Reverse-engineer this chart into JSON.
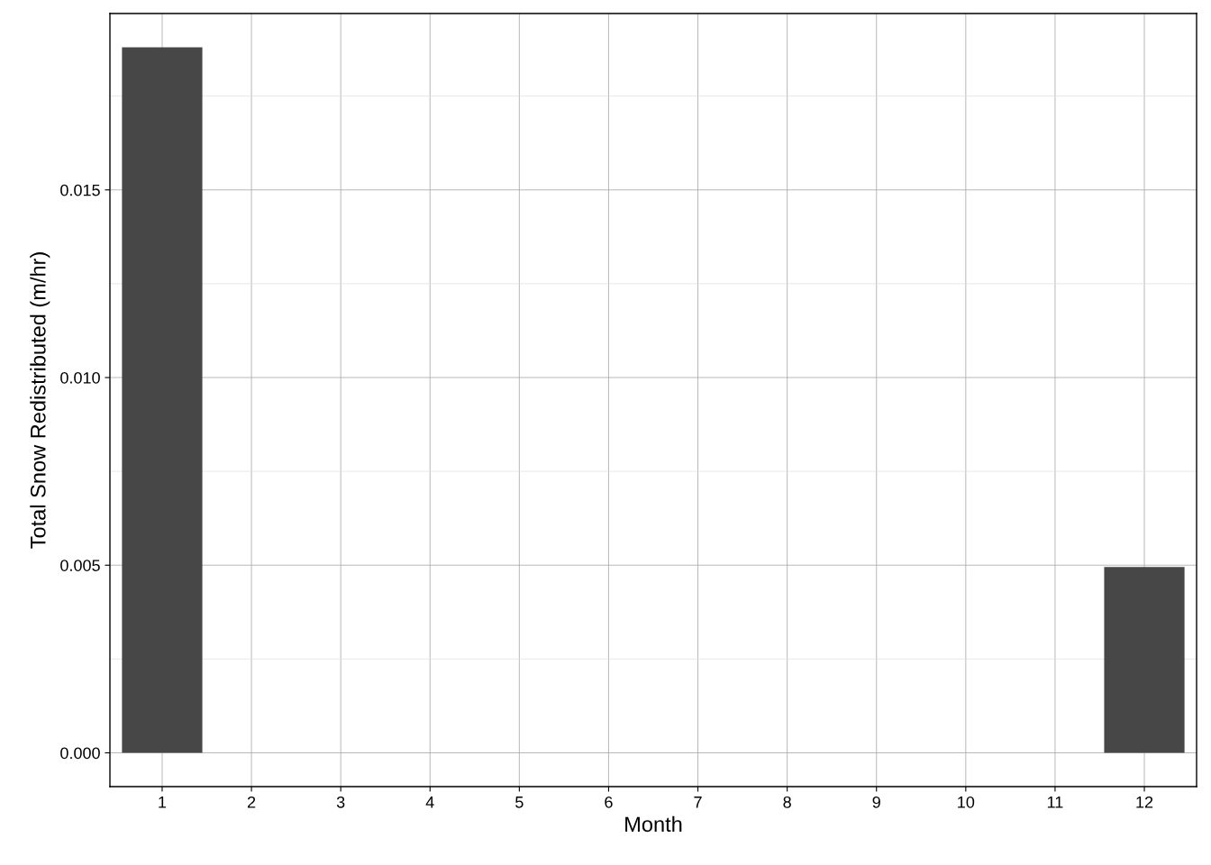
{
  "chart_data": {
    "type": "bar",
    "xlabel": "Month",
    "ylabel": "Total Snow Redistributed (m/hr)",
    "categories": [
      "1",
      "2",
      "3",
      "4",
      "5",
      "6",
      "7",
      "8",
      "9",
      "10",
      "11",
      "12"
    ],
    "values": [
      0.0188,
      0,
      0,
      0,
      0,
      0,
      0,
      0,
      0,
      0,
      0,
      0.00495
    ],
    "color": "#474747",
    "ylim": [
      -0.0009,
      0.0197
    ],
    "yticks": [
      {
        "value": 0,
        "label": "0.000"
      },
      {
        "value": 0.005,
        "label": "0.005"
      },
      {
        "value": 0.01,
        "label": "0.010"
      },
      {
        "value": 0.015,
        "label": "0.015"
      }
    ],
    "grid": true
  }
}
